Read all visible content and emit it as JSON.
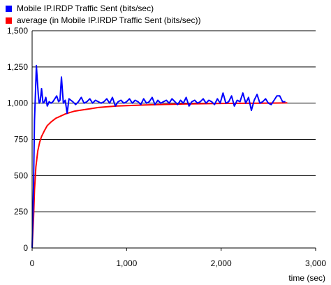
{
  "legend": {
    "position": "top-left",
    "items": [
      {
        "label": "Mobile IP.IRDP Traffic Sent (bits/sec)",
        "color": "#0000ff"
      },
      {
        "label": "average (in Mobile IP.IRDP Traffic Sent (bits/sec))",
        "color": "#ff0000"
      }
    ]
  },
  "chart_data": {
    "type": "line",
    "title": "",
    "xlabel": "time (sec)",
    "ylabel": "",
    "xlim": [
      0,
      3000
    ],
    "ylim": [
      0,
      1500
    ],
    "x_ticks": [
      0,
      1000,
      2000,
      3000
    ],
    "x_tick_labels": [
      "0",
      "1,000",
      "2,000",
      "3,000"
    ],
    "y_ticks": [
      0,
      250,
      500,
      750,
      1000,
      1250,
      1500
    ],
    "y_tick_labels": [
      "0",
      "250",
      "500",
      "750",
      "1,000",
      "1,250",
      "1,500"
    ],
    "grid": {
      "horizontal": true,
      "vertical": false
    },
    "series": [
      {
        "name": "Mobile IP.IRDP Traffic Sent (bits/sec)",
        "color": "#0000ff",
        "x": [
          0,
          15,
          25,
          35,
          45,
          55,
          65,
          75,
          85,
          100,
          115,
          130,
          145,
          160,
          180,
          200,
          220,
          240,
          260,
          280,
          295,
          310,
          330,
          350,
          370,
          390,
          410,
          430,
          460,
          490,
          520,
          550,
          580,
          610,
          640,
          670,
          700,
          730,
          760,
          790,
          820,
          850,
          880,
          910,
          940,
          970,
          1000,
          1030,
          1060,
          1090,
          1120,
          1150,
          1180,
          1210,
          1240,
          1270,
          1300,
          1330,
          1360,
          1390,
          1420,
          1450,
          1480,
          1510,
          1540,
          1570,
          1600,
          1630,
          1660,
          1690,
          1720,
          1750,
          1780,
          1810,
          1840,
          1870,
          1900,
          1930,
          1960,
          1990,
          2020,
          2050,
          2080,
          2110,
          2140,
          2170,
          2200,
          2230,
          2260,
          2290,
          2320,
          2350,
          2380,
          2410,
          2440,
          2470,
          2500,
          2530,
          2560,
          2590,
          2620,
          2650,
          2680
        ],
        "y": [
          0,
          420,
          880,
          1060,
          1260,
          1160,
          1060,
          1000,
          1010,
          1100,
          1000,
          1010,
          1040,
          980,
          1010,
          1000,
          1010,
          1030,
          1050,
          1010,
          1020,
          1180,
          1000,
          1020,
          930,
          1030,
          1020,
          1010,
          990,
          1010,
          1040,
          1000,
          1010,
          1030,
          1000,
          1020,
          1010,
          1000,
          1010,
          1030,
          1000,
          1040,
          980,
          1010,
          1020,
          1000,
          1010,
          1030,
          1000,
          1020,
          1010,
          990,
          1030,
          1000,
          1010,
          1040,
          990,
          1020,
          1000,
          1010,
          1020,
          1000,
          1030,
          1010,
          990,
          1020,
          1000,
          1040,
          980,
          1010,
          1020,
          1000,
          1010,
          1030,
          1000,
          1020,
          1010,
          990,
          1030,
          1000,
          1070,
          1000,
          1010,
          1050,
          980,
          1020,
          1010,
          1070,
          1000,
          1040,
          950,
          1020,
          1060,
          1000,
          1010,
          1030,
          1000,
          990,
          1020,
          1050,
          1050,
          1010,
          1010
        ]
      },
      {
        "name": "average (in Mobile IP.IRDP Traffic Sent (bits/sec))",
        "color": "#ff0000",
        "x": [
          0,
          15,
          25,
          40,
          60,
          80,
          100,
          130,
          160,
          200,
          250,
          300,
          350,
          400,
          450,
          500,
          600,
          700,
          800,
          900,
          1000,
          1200,
          1400,
          1600,
          1800,
          2000,
          2200,
          2400,
          2600,
          2700
        ],
        "y": [
          0,
          200,
          400,
          560,
          670,
          730,
          770,
          810,
          845,
          870,
          895,
          910,
          925,
          935,
          945,
          950,
          960,
          970,
          975,
          980,
          983,
          988,
          991,
          994,
          996,
          998,
          999,
          1000,
          1001,
          1002
        ]
      }
    ]
  }
}
